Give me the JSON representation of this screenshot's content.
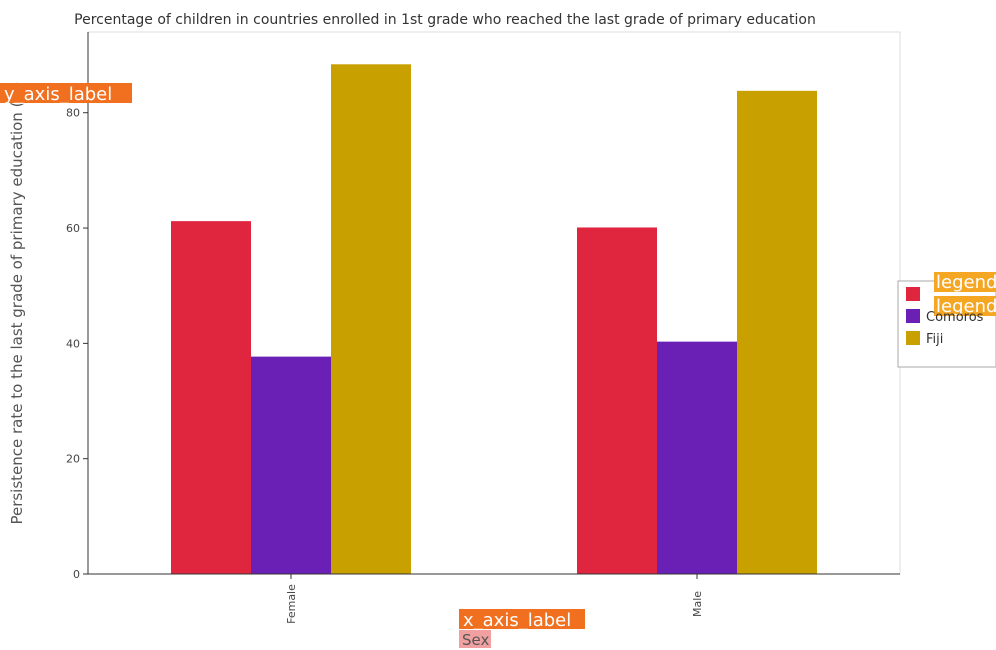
{
  "title": "Percentage of children in countries enrolled in 1st grade who reached the last grade of primary education",
  "colors": {
    "series": [
      "#e0263f",
      "#6a1fb5",
      "#c8a000"
    ],
    "overlay_tag": "#f07020",
    "overlay_tag_alt": "#f5a623"
  },
  "overlay_tags": {
    "y": "y_axis_label",
    "x": "x_axis_label",
    "legend": "legend"
  },
  "chart_data": {
    "type": "bar",
    "categories": [
      "Female",
      "Male"
    ],
    "series": [
      {
        "name": "",
        "values": [
          61.2,
          60.1
        ]
      },
      {
        "name": "Comoros",
        "values": [
          37.7,
          40.3
        ]
      },
      {
        "name": "Fiji",
        "values": [
          88.4,
          83.8
        ]
      }
    ],
    "title": "Percentage of children in countries enrolled in 1st grade who reached the last grade of primary education",
    "xlabel": "Sex",
    "ylabel": "Persistence rate to the last grade of primary education (%)",
    "ylim": [
      0,
      94
    ],
    "yticks": [
      0,
      20,
      40,
      60,
      80
    ],
    "grid": false,
    "legend_position": "right"
  }
}
